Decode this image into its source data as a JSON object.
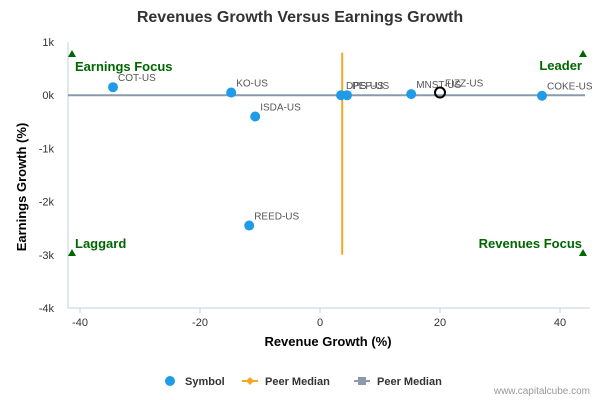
{
  "chart_data": {
    "type": "scatter",
    "title": "Revenues Growth Versus Earnings Growth",
    "xlabel": "Revenue Growth (%)",
    "ylabel": "Earnings Growth (%)",
    "xlim": [
      -42,
      45
    ],
    "ylim": [
      -4000,
      1000
    ],
    "x_ticks": [
      -40,
      -20,
      0,
      20,
      40
    ],
    "x_tick_labels": [
      "-40",
      "-20",
      "0",
      "20",
      "40"
    ],
    "y_ticks": [
      1000,
      0,
      -1000,
      -2000,
      -3000,
      -4000
    ],
    "y_tick_labels": [
      "1k",
      "0k",
      "-1k",
      "-2k",
      "-3k",
      "-4k"
    ],
    "points": [
      {
        "label": "COT-US",
        "x": -34.5,
        "y": 150
      },
      {
        "label": "KO-US",
        "x": -14.8,
        "y": 50
      },
      {
        "label": "ISDA-US",
        "x": -10.8,
        "y": -400
      },
      {
        "label": "REED-US",
        "x": -11.8,
        "y": -2450
      },
      {
        "label": "DPS-US",
        "x": 3.5,
        "y": 0
      },
      {
        "label": "PEP-US",
        "x": 4.5,
        "y": 0
      },
      {
        "label": "MNST-US",
        "x": 15.2,
        "y": 20
      },
      {
        "label": "COKE-US",
        "x": 37.0,
        "y": -10
      }
    ],
    "highlight": {
      "label": "FIZZ-US",
      "x": 20.0,
      "y": 50
    },
    "peer_median_x": 3.7,
    "peer_median_y": 0,
    "peer_median_x_range": [
      -3000,
      800
    ],
    "quadrant_labels": {
      "top_left": "Earnings Focus",
      "top_right": "Leader",
      "bottom_left": "Laggard",
      "bottom_right": "Revenues Focus"
    },
    "legend": [
      {
        "label": "Symbol",
        "color": "#1f9be8"
      },
      {
        "label": "Peer Median",
        "color": "#f5a623"
      },
      {
        "label": "Peer Median",
        "color": "#8a9aac"
      }
    ],
    "colors": {
      "point": "#1f9be8",
      "median_vertical": "#f5a623",
      "median_horizontal": "#8a9aac",
      "quadrant": "#006600"
    },
    "grid": false,
    "credit": "www.capitalcube.com"
  }
}
